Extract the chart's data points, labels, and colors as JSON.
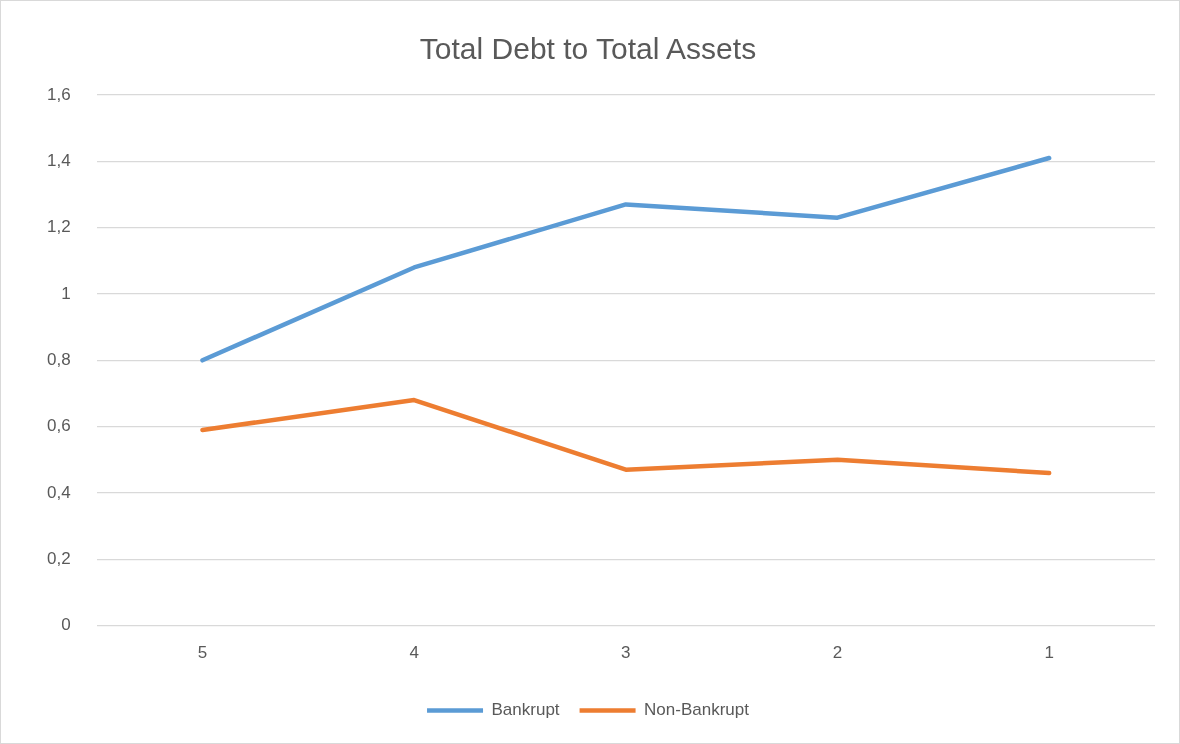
{
  "chart_data": {
    "type": "line",
    "title": "Total Debt to Total Assets",
    "categories": [
      "5",
      "4",
      "3",
      "2",
      "1"
    ],
    "series": [
      {
        "name": "Bankrupt",
        "color": "#5b9bd5",
        "values": [
          0.8,
          1.08,
          1.27,
          1.23,
          1.41
        ]
      },
      {
        "name": "Non-Bankrupt",
        "color": "#ed7d31",
        "values": [
          0.59,
          0.68,
          0.47,
          0.5,
          0.46
        ]
      }
    ],
    "ylim": [
      0,
      1.6
    ],
    "yticks": [
      0,
      {
        "value": 0.2,
        "label": "0,2"
      },
      {
        "value": 0.4,
        "label": "0,4"
      },
      {
        "value": 0.6,
        "label": "0,6"
      },
      {
        "value": 0.8,
        "label": "0,8"
      },
      1,
      {
        "value": 1.2,
        "label": "1,2"
      },
      {
        "value": 1.4,
        "label": "1,4"
      },
      {
        "value": 1.6,
        "label": "1,6"
      }
    ],
    "grid": "y",
    "legend": "bottom",
    "marker": "none",
    "line_style": "solid"
  }
}
